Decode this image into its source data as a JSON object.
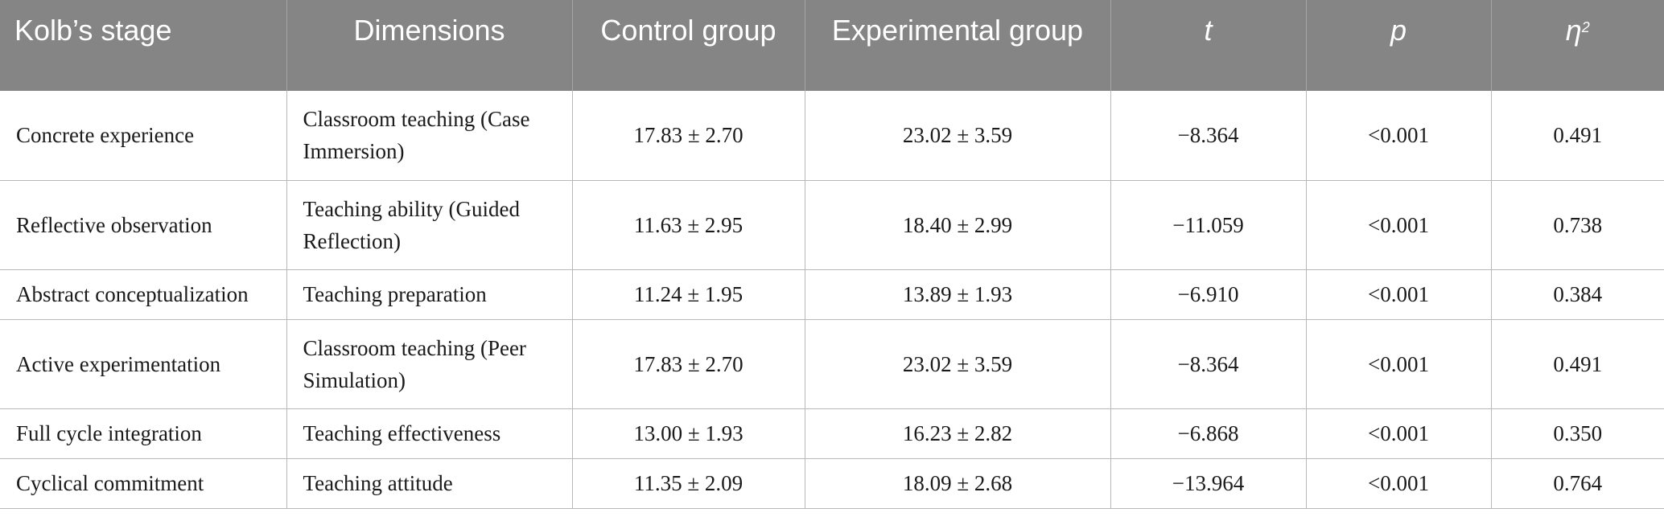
{
  "table": {
    "headers": [
      "Kolb’s stage",
      "Dimensions",
      "Control group",
      "Experimental group",
      "t",
      "p",
      "η"
    ],
    "eta_sup": "2",
    "rows": [
      {
        "stage": "Concrete experience",
        "dimension": "Classroom teaching (Case Immersion)",
        "control": "17.83 ± 2.70",
        "experimental": "23.02 ± 3.59",
        "t": "−8.364",
        "p": "<0.001",
        "eta2": "0.491"
      },
      {
        "stage": "Reflective observation",
        "dimension": "Teaching ability (Guided Reflection)",
        "control": "11.63 ± 2.95",
        "experimental": "18.40 ± 2.99",
        "t": "−11.059",
        "p": "<0.001",
        "eta2": "0.738"
      },
      {
        "stage": "Abstract conceptualization",
        "dimension": "Teaching preparation",
        "control": "11.24 ± 1.95",
        "experimental": "13.89 ± 1.93",
        "t": "−6.910",
        "p": "<0.001",
        "eta2": "0.384"
      },
      {
        "stage": "Active experimentation",
        "dimension": "Classroom teaching (Peer Simulation)",
        "control": "17.83 ± 2.70",
        "experimental": "23.02 ± 3.59",
        "t": "−8.364",
        "p": "<0.001",
        "eta2": "0.491"
      },
      {
        "stage": "Full cycle integration",
        "dimension": "Teaching effectiveness",
        "control": "13.00 ± 1.93",
        "experimental": "16.23 ± 2.82",
        "t": "−6.868",
        "p": "<0.001",
        "eta2": "0.350"
      },
      {
        "stage": "Cyclical commitment",
        "dimension": "Teaching attitude",
        "control": "11.35 ± 2.09",
        "experimental": "18.09 ± 2.68",
        "t": "−13.964",
        "p": "<0.001",
        "eta2": "0.764"
      }
    ]
  }
}
